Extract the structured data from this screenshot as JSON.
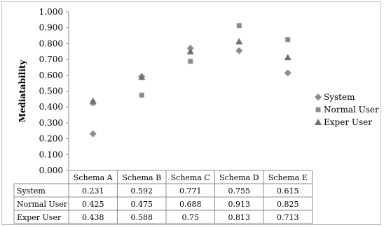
{
  "chart_data": {
    "type": "scatter",
    "ylabel": "Mediatability",
    "ylim": [
      0,
      1
    ],
    "ytick_labels": [
      "0.000",
      "0.100",
      "0.200",
      "0.300",
      "0.400",
      "0.500",
      "0.600",
      "0.700",
      "0.800",
      "0.900",
      "1.000"
    ],
    "categories": [
      "Schema A",
      "Schema B",
      "Schema C",
      "Schema D",
      "Schema E"
    ],
    "legend_position": "right",
    "grid": false,
    "series": [
      {
        "name": "System",
        "marker": "diamond",
        "color": "#8c8c8c",
        "values": [
          0.231,
          0.592,
          0.771,
          0.755,
          0.615
        ],
        "value_labels": [
          "0.231",
          "0.592",
          "0.771",
          "0.755",
          "0.615"
        ]
      },
      {
        "name": "Normal User",
        "marker": "square",
        "color": "#8c8c8c",
        "values": [
          0.425,
          0.475,
          0.688,
          0.913,
          0.825
        ],
        "value_labels": [
          "0.425",
          "0.475",
          "0.688",
          "0.913",
          "0.825"
        ]
      },
      {
        "name": "Exper User",
        "marker": "triangle",
        "color": "#6f6f6f",
        "values": [
          0.438,
          0.588,
          0.75,
          0.813,
          0.713
        ],
        "value_labels": [
          "0.438",
          "0.588",
          "0.75",
          "0.813",
          "0.713"
        ]
      }
    ]
  }
}
